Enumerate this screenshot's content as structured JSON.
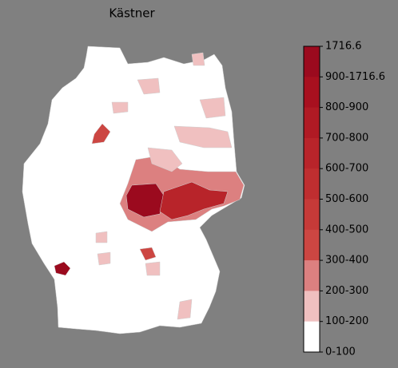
{
  "title": "Kästner",
  "legend": {
    "labels": [
      "1716.6",
      "900-1716.6",
      "800-900",
      "700-800",
      "600-700",
      "500-600",
      "400-500",
      "300-400",
      "200-300",
      "100-200",
      "0-100"
    ],
    "colors": [
      "#9b0a1e",
      "#a8101f",
      "#b01a24",
      "#b8242a",
      "#bf2e30",
      "#c63a38",
      "#cc4642",
      "#dc8080",
      "#f0c0c0",
      "#ffffff"
    ]
  }
}
